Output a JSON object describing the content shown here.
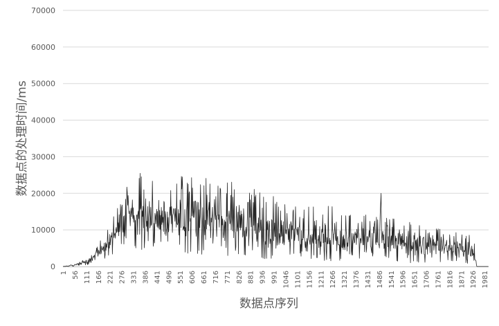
{
  "chart_data": {
    "type": "line",
    "title": "",
    "xlabel": "数据点序列",
    "ylabel": "数据点的处理时间/ms",
    "ylim": [
      0,
      70000
    ],
    "yticks": [
      0,
      10000,
      20000,
      30000,
      40000,
      50000,
      60000,
      70000
    ],
    "xlim": [
      1,
      2000
    ],
    "xticks": [
      1,
      56,
      111,
      166,
      221,
      276,
      331,
      386,
      441,
      496,
      551,
      606,
      661,
      716,
      771,
      826,
      881,
      936,
      991,
      1046,
      1101,
      1156,
      1211,
      1266,
      1321,
      1376,
      1431,
      1486,
      1541,
      1596,
      1651,
      1706,
      1761,
      1816,
      1871,
      1926,
      1981
    ],
    "grid": true,
    "legend": "none",
    "line_color": "#262626",
    "grid_color": "#d9d9d9",
    "text_color": "#595959",
    "series": [
      {
        "x": [
          1,
          40,
          80,
          120,
          150,
          175,
          200,
          225,
          250,
          275,
          300,
          325,
          350,
          375,
          400,
          450,
          500,
          550,
          600,
          650,
          700,
          750,
          800,
          850,
          900,
          950,
          1000,
          1050,
          1100,
          1150,
          1200,
          1250,
          1300,
          1350,
          1400,
          1450,
          1490,
          1495,
          1500,
          1550,
          1600,
          1650,
          1700,
          1750,
          1800,
          1850,
          1900,
          1930,
          1945,
          1960,
          2000
        ],
        "upper": [
          0,
          500,
          1500,
          3000,
          5000,
          7000,
          9000,
          12000,
          15000,
          19000,
          22000,
          25000,
          27500,
          24000,
          24500,
          23000,
          25500,
          25000,
          25500,
          24500,
          25000,
          23000,
          23500,
          22500,
          21500,
          20000,
          19000,
          18000,
          17500,
          16500,
          17000,
          17000,
          16000,
          15500,
          14500,
          14500,
          13500,
          20000,
          13500,
          13500,
          12500,
          12000,
          11500,
          10500,
          10000,
          9500,
          9000,
          8500,
          0,
          0,
          0
        ],
        "lower": [
          0,
          0,
          0,
          500,
          1000,
          1500,
          2000,
          3000,
          3500,
          4500,
          5000,
          5000,
          5000,
          4500,
          4500,
          4000,
          4000,
          3500,
          3500,
          3000,
          3000,
          3000,
          2500,
          2500,
          2500,
          2000,
          2000,
          2000,
          2000,
          2000,
          1500,
          1500,
          1500,
          1500,
          1500,
          1500,
          1500,
          1500,
          1500,
          1000,
          1000,
          1000,
          1000,
          1000,
          500,
          500,
          500,
          500,
          0,
          0,
          0
        ],
        "mid": [
          0,
          200,
          600,
          1500,
          2800,
          4000,
          5500,
          7500,
          9000,
          11000,
          12500,
          13500,
          14500,
          13000,
          12500,
          12000,
          12500,
          12000,
          12000,
          11500,
          11500,
          11000,
          10500,
          10000,
          10000,
          9000,
          8500,
          8000,
          8000,
          7500,
          7500,
          7500,
          7000,
          7000,
          6500,
          6500,
          6500,
          6500,
          6500,
          6000,
          6000,
          5500,
          5500,
          5000,
          5000,
          4500,
          4500,
          4000,
          0,
          0,
          0
        ]
      }
    ]
  }
}
